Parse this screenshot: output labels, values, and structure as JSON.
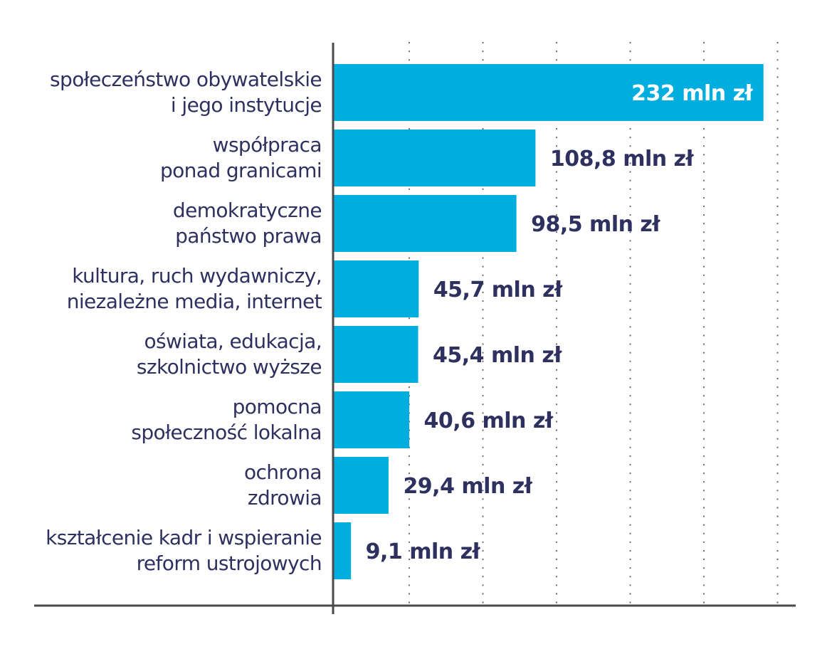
{
  "colors": {
    "bar": "#00addf",
    "label_text": "#2e3160",
    "value_text_outside": "#2e3160",
    "value_text_inside": "#ffffff",
    "axis": "#4a4a4a",
    "grid": "#6b6b6b"
  },
  "chart_data": {
    "type": "bar",
    "orientation": "horizontal",
    "title": "",
    "xlabel": "",
    "ylabel": "",
    "xlim": [
      0,
      250
    ],
    "grid": "vertical dotted",
    "legend": "none",
    "categories": [
      [
        "społeczeństwo obywatelskie",
        "i jego instytucje"
      ],
      [
        "współpraca",
        "ponad granicami"
      ],
      [
        "demokratyczne",
        "państwo prawa"
      ],
      [
        "kultura, ruch wydawniczy,",
        "niezależne media, internet"
      ],
      [
        "oświata, edukacja,",
        "szkolnictwo wyższe"
      ],
      [
        "pomocna",
        "społeczność lokalna"
      ],
      [
        "ochrona",
        "zdrowia"
      ],
      [
        "kształcenie kadr i wspieranie",
        "reform ustrojowych"
      ]
    ],
    "values": [
      232,
      108.8,
      98.5,
      45.7,
      45.4,
      40.6,
      29.4,
      9.1
    ],
    "value_labels": [
      "232 mln zł",
      "108,8 mln zł",
      "98,5 mln zł",
      "45,7 mln zł",
      "45,4 mln zł",
      "40,6 mln zł",
      "29,4 mln zł",
      "9,1 mln zł"
    ]
  }
}
